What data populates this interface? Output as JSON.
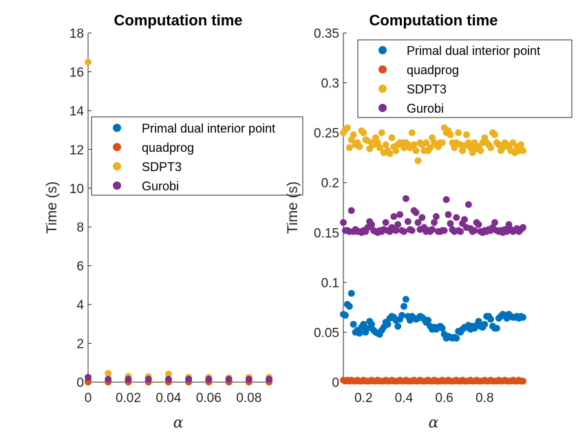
{
  "colors": {
    "primal": "#0072BD",
    "quadprog": "#D95319",
    "sdpt3": "#EDB120",
    "gurobi": "#7E2F8E",
    "axis": "#262626"
  },
  "chart_data": [
    {
      "type": "scatter",
      "title": "Computation time",
      "xlabel": "α",
      "ylabel": "Time (s)",
      "xlim": [
        0,
        0.09
      ],
      "ylim": [
        0,
        18
      ],
      "xticks": [
        0,
        0.02,
        0.04,
        0.06,
        0.08
      ],
      "xtick_labels": [
        "0",
        "0.02",
        "0.04",
        "0.06",
        "0.08"
      ],
      "yticks": [
        0,
        2,
        4,
        6,
        8,
        10,
        12,
        14,
        16,
        18
      ],
      "ytick_labels": [
        "0",
        "2",
        "4",
        "6",
        "8",
        "10",
        "12",
        "14",
        "16",
        "18"
      ],
      "legend_position": "middle",
      "legend": [
        "Primal dual interior point",
        "quadprog",
        "SDPT3",
        "Gurobi"
      ],
      "x": [
        0,
        0.01,
        0.02,
        0.03,
        0.04,
        0.05,
        0.06,
        0.07,
        0.08,
        0.09
      ],
      "series": [
        {
          "name": "Primal dual interior point",
          "color_key": "primal",
          "values": [
            0.08,
            0.06,
            0.06,
            0.06,
            0.07,
            0.06,
            0.06,
            0.06,
            0.06,
            0.06
          ]
        },
        {
          "name": "quadprog",
          "color_key": "quadprog",
          "values": [
            0.005,
            0.005,
            0.005,
            0.005,
            0.005,
            0.005,
            0.005,
            0.005,
            0.005,
            0.005
          ]
        },
        {
          "name": "SDPT3",
          "color_key": "sdpt3",
          "values": [
            16.5,
            0.45,
            0.3,
            0.28,
            0.42,
            0.25,
            0.25,
            0.22,
            0.25,
            0.25
          ]
        },
        {
          "name": "Gurobi",
          "color_key": "gurobi",
          "values": [
            0.25,
            0.15,
            0.15,
            0.15,
            0.15,
            0.15,
            0.15,
            0.15,
            0.15,
            0.15
          ]
        }
      ]
    },
    {
      "type": "scatter",
      "title": "Computation time",
      "xlabel": "α",
      "ylabel": "Time (s)",
      "xlim": [
        0.1,
        1.0
      ],
      "ylim": [
        0,
        0.35
      ],
      "xticks": [
        0.2,
        0.4,
        0.6,
        0.8
      ],
      "xtick_labels": [
        "0.2",
        "0.4",
        "0.6",
        "0.8"
      ],
      "yticks": [
        0,
        0.05,
        0.1,
        0.15,
        0.2,
        0.25,
        0.3,
        0.35
      ],
      "ytick_labels": [
        "0",
        "0.05",
        "0.1",
        "0.15",
        "0.2",
        "0.25",
        "0.3",
        "0.35"
      ],
      "legend_position": "top-right",
      "legend": [
        "Primal dual interior point",
        "quadprog",
        "SDPT3",
        "Gurobi"
      ],
      "x": [
        0.1,
        0.11,
        0.12,
        0.13,
        0.14,
        0.15,
        0.16,
        0.17,
        0.18,
        0.19,
        0.2,
        0.21,
        0.22,
        0.23,
        0.24,
        0.25,
        0.26,
        0.27,
        0.28,
        0.29,
        0.3,
        0.31,
        0.32,
        0.33,
        0.34,
        0.35,
        0.36,
        0.37,
        0.38,
        0.39,
        0.4,
        0.41,
        0.42,
        0.43,
        0.44,
        0.45,
        0.46,
        0.47,
        0.48,
        0.49,
        0.5,
        0.51,
        0.52,
        0.53,
        0.54,
        0.55,
        0.56,
        0.57,
        0.58,
        0.59,
        0.6,
        0.61,
        0.62,
        0.63,
        0.64,
        0.65,
        0.66,
        0.67,
        0.68,
        0.69,
        0.7,
        0.71,
        0.72,
        0.73,
        0.74,
        0.75,
        0.76,
        0.77,
        0.78,
        0.79,
        0.8,
        0.81,
        0.82,
        0.83,
        0.84,
        0.85,
        0.86,
        0.87,
        0.88,
        0.89,
        0.9,
        0.91,
        0.92,
        0.93,
        0.94,
        0.95,
        0.96,
        0.97,
        0.98,
        0.99
      ],
      "series": [
        {
          "name": "Primal dual interior point",
          "color_key": "primal",
          "values": [
            0.068,
            0.067,
            0.078,
            0.076,
            0.089,
            0.058,
            0.05,
            0.052,
            0.049,
            0.055,
            0.058,
            0.05,
            0.054,
            0.061,
            0.058,
            0.052,
            0.05,
            0.049,
            0.048,
            0.052,
            0.055,
            0.06,
            0.058,
            0.064,
            0.066,
            0.065,
            0.062,
            0.056,
            0.063,
            0.067,
            0.076,
            0.083,
            0.066,
            0.062,
            0.066,
            0.064,
            0.063,
            0.064,
            0.066,
            0.065,
            0.063,
            0.06,
            0.062,
            0.056,
            0.053,
            0.055,
            0.053,
            0.055,
            0.056,
            0.054,
            0.048,
            0.044,
            0.046,
            0.045,
            0.044,
            0.045,
            0.044,
            0.051,
            0.05,
            0.053,
            0.055,
            0.055,
            0.057,
            0.053,
            0.056,
            0.054,
            0.057,
            0.061,
            0.056,
            0.055,
            0.058,
            0.066,
            0.066,
            0.063,
            0.056,
            0.054,
            0.054,
            0.064,
            0.066,
            0.068,
            0.067,
            0.064,
            0.068,
            0.066,
            0.065,
            0.065,
            0.066,
            0.064,
            0.066,
            0.065
          ]
        },
        {
          "name": "quadprog",
          "color_key": "quadprog",
          "values": [
            0.002,
            0.001,
            0.002,
            0.001,
            0.002,
            0.001,
            0.001,
            0.002,
            0.001,
            0.001,
            0.002,
            0.001,
            0.001,
            0.001,
            0.002,
            0.001,
            0.001,
            0.002,
            0.001,
            0.001,
            0.001,
            0.002,
            0.001,
            0.001,
            0.002,
            0.001,
            0.001,
            0.001,
            0.002,
            0.001,
            0.001,
            0.002,
            0.001,
            0.001,
            0.001,
            0.002,
            0.001,
            0.001,
            0.002,
            0.001,
            0.001,
            0.001,
            0.002,
            0.001,
            0.001,
            0.002,
            0.001,
            0.001,
            0.001,
            0.002,
            0.001,
            0.001,
            0.002,
            0.001,
            0.001,
            0.001,
            0.002,
            0.001,
            0.001,
            0.002,
            0.001,
            0.001,
            0.001,
            0.002,
            0.001,
            0.001,
            0.002,
            0.001,
            0.001,
            0.001,
            0.002,
            0.001,
            0.001,
            0.002,
            0.001,
            0.001,
            0.001,
            0.002,
            0.001,
            0.001,
            0.002,
            0.001,
            0.001,
            0.001,
            0.002,
            0.001,
            0.001,
            0.002,
            0.001,
            0.001
          ]
        },
        {
          "name": "SDPT3",
          "color_key": "sdpt3",
          "values": [
            0.25,
            0.253,
            0.255,
            0.235,
            0.243,
            0.248,
            0.238,
            0.24,
            0.236,
            0.252,
            0.25,
            0.243,
            0.242,
            0.234,
            0.24,
            0.238,
            0.245,
            0.24,
            0.235,
            0.25,
            0.23,
            0.238,
            0.232,
            0.229,
            0.245,
            0.236,
            0.232,
            0.238,
            0.24,
            0.24,
            0.235,
            0.24,
            0.238,
            0.235,
            0.25,
            0.238,
            0.232,
            0.222,
            0.24,
            0.238,
            0.232,
            0.24,
            0.232,
            0.235,
            0.245,
            0.24,
            0.238,
            0.236,
            0.24,
            0.24,
            0.255,
            0.25,
            0.252,
            0.248,
            0.24,
            0.235,
            0.24,
            0.25,
            0.238,
            0.232,
            0.237,
            0.248,
            0.24,
            0.235,
            0.23,
            0.24,
            0.234,
            0.236,
            0.232,
            0.24,
            0.245,
            0.24,
            0.238,
            0.235,
            0.25,
            0.248,
            0.24,
            0.238,
            0.232,
            0.235,
            0.24,
            0.238,
            0.236,
            0.232,
            0.24,
            0.23,
            0.236,
            0.232,
            0.238,
            0.232
          ]
        },
        {
          "name": "Gurobi",
          "color_key": "gurobi",
          "values": [
            0.16,
            0.152,
            0.152,
            0.151,
            0.172,
            0.151,
            0.153,
            0.151,
            0.151,
            0.15,
            0.152,
            0.151,
            0.155,
            0.161,
            0.158,
            0.152,
            0.151,
            0.15,
            0.152,
            0.151,
            0.153,
            0.16,
            0.152,
            0.151,
            0.155,
            0.166,
            0.152,
            0.158,
            0.168,
            0.152,
            0.151,
            0.184,
            0.161,
            0.153,
            0.152,
            0.172,
            0.17,
            0.16,
            0.153,
            0.165,
            0.155,
            0.151,
            0.152,
            0.151,
            0.153,
            0.16,
            0.166,
            0.151,
            0.151,
            0.152,
            0.152,
            0.183,
            0.168,
            0.159,
            0.153,
            0.151,
            0.165,
            0.152,
            0.151,
            0.159,
            0.163,
            0.155,
            0.178,
            0.154,
            0.151,
            0.152,
            0.16,
            0.158,
            0.151,
            0.15,
            0.152,
            0.151,
            0.153,
            0.152,
            0.155,
            0.16,
            0.152,
            0.151,
            0.152,
            0.15,
            0.153,
            0.151,
            0.158,
            0.153,
            0.151,
            0.152,
            0.154,
            0.151,
            0.153,
            0.155
          ]
        }
      ]
    }
  ]
}
